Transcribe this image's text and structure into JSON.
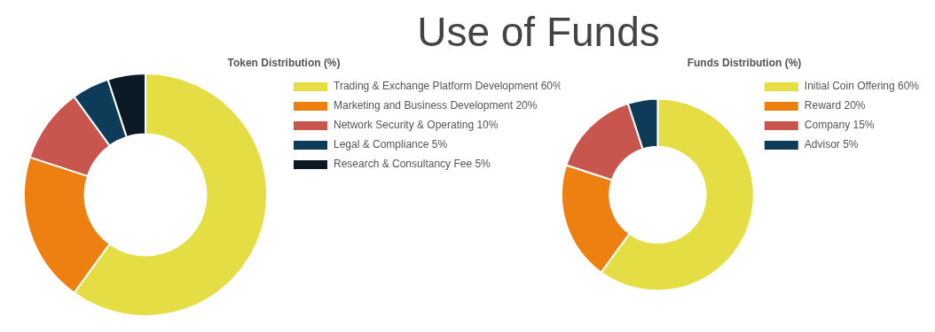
{
  "chart_data": [
    {
      "type": "donut",
      "title": "Token Distribution (%)",
      "annotations": [
        "Use of Funds"
      ],
      "legend": "top right",
      "categories": [
        "Trading & Exchange Platform Development 60%",
        "Marketing and Business Development 20%",
        "Network Security & Operating 10%",
        "Legal & Compliance 5%",
        "Research & Consultancy Fee 5%"
      ],
      "values": [
        60,
        20,
        10,
        5,
        5
      ],
      "colors": [
        "#e4de44",
        "#ee8012",
        "#c8554e",
        "#0e3b58",
        "#0b1a25"
      ]
    },
    {
      "type": "donut",
      "title": "Funds Distribution (%)",
      "legend": "top right",
      "categories": [
        "Initial Coin Offering 60%",
        "Reward 20%",
        "Company 15%",
        "Advisor 5%"
      ],
      "values": [
        60,
        20,
        15,
        5
      ],
      "colors": [
        "#e4de44",
        "#ee8012",
        "#c8554e",
        "#0e3b58"
      ]
    }
  ]
}
